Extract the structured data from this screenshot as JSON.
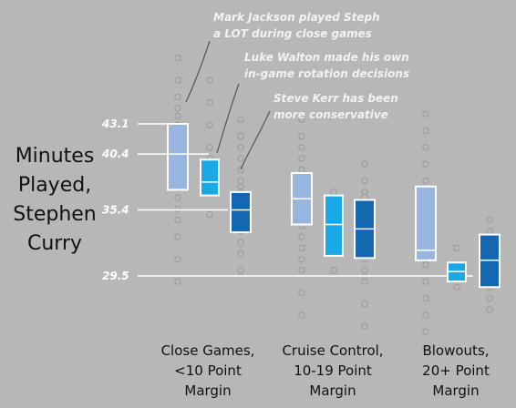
{
  "chart_data": {
    "type": "box",
    "ylabel_lines": [
      "Minutes",
      "Played,",
      "Stephen",
      "Curry"
    ],
    "y_ticks": [
      {
        "label": "43.1",
        "value": 43.1
      },
      {
        "label": "40.4",
        "value": 40.4
      },
      {
        "label": "35.4",
        "value": 35.4
      },
      {
        "label": "29.5",
        "value": 29.5
      }
    ],
    "categories": [
      {
        "lines": [
          "Close Games,",
          "<10 Point",
          "Margin"
        ]
      },
      {
        "lines": [
          "Cruise Control,",
          "10-19 Point",
          "Margin"
        ]
      },
      {
        "lines": [
          "Blowouts,",
          "20+ Point",
          "Margin"
        ]
      }
    ],
    "annotations": [
      {
        "lines": [
          "Mark Jackson played Steph",
          "a LOT during close games"
        ]
      },
      {
        "lines": [
          "Luke Walton made his own",
          "in-game rotation decisions"
        ]
      },
      {
        "lines": [
          "Steve Kerr has been",
          "more conservative"
        ]
      }
    ],
    "coach_colors": [
      "#97b5de",
      "#1aa9e6",
      "#1667b2"
    ],
    "boxes": [
      {
        "category": 0,
        "coach": 0,
        "q1": 37.2,
        "median": 40.4,
        "q3": 43.1
      },
      {
        "category": 0,
        "coach": 1,
        "q1": 36.7,
        "median": 37.9,
        "q3": 39.9
      },
      {
        "category": 0,
        "coach": 2,
        "q1": 33.4,
        "median": 35.4,
        "q3": 37.0
      },
      {
        "category": 1,
        "coach": 0,
        "q1": 34.1,
        "median": 36.4,
        "q3": 38.7
      },
      {
        "category": 1,
        "coach": 1,
        "q1": 31.3,
        "median": 34.1,
        "q3": 36.7
      },
      {
        "category": 1,
        "coach": 2,
        "q1": 31.1,
        "median": 33.7,
        "q3": 36.3
      },
      {
        "category": 2,
        "coach": 0,
        "q1": 30.9,
        "median": 31.8,
        "q3": 37.5
      },
      {
        "category": 2,
        "coach": 1,
        "q1": 29.0,
        "median": 29.9,
        "q3": 30.7
      },
      {
        "category": 2,
        "coach": 2,
        "q1": 28.5,
        "median": 30.9,
        "q3": 33.2
      }
    ],
    "points": [
      [
        [
          29,
          31,
          33,
          34.5,
          35.5,
          36.5,
          37.5,
          38.2,
          39,
          39.7,
          40.4,
          41,
          41.7,
          42.4,
          43,
          43.8,
          44.5,
          45.5,
          47,
          49
        ],
        [
          35,
          37,
          38,
          38.5,
          39,
          40,
          41,
          43,
          45,
          47
        ],
        [
          30,
          31.5,
          32.5,
          33.5,
          34,
          34.5,
          35,
          35.5,
          36,
          36.5,
          37,
          37.5,
          38,
          39,
          40,
          41,
          42,
          43.5
        ]
      ],
      [
        [
          26,
          28,
          30,
          31,
          32,
          33,
          34,
          34.5,
          35,
          35.5,
          36,
          36.5,
          37,
          37.5,
          38,
          38.5,
          39,
          40,
          41,
          42,
          43.5
        ],
        [
          30,
          32,
          33,
          34,
          35,
          36,
          37
        ],
        [
          25,
          27,
          29,
          30,
          31,
          32,
          32.5,
          33,
          33.5,
          34,
          34.5,
          35,
          35.5,
          36,
          36.5,
          37,
          38,
          39.5
        ]
      ],
      [
        [
          23,
          24.5,
          26,
          27.5,
          29,
          30.5,
          32,
          33.5,
          35,
          36.5,
          38,
          39.5,
          41,
          42.5,
          44
        ],
        [
          28.5,
          29.5,
          30.5,
          32
        ],
        [
          26.5,
          27.5,
          28.5,
          29.5,
          30.5,
          31.5,
          32.5,
          33.5,
          34.5
        ]
      ]
    ]
  }
}
